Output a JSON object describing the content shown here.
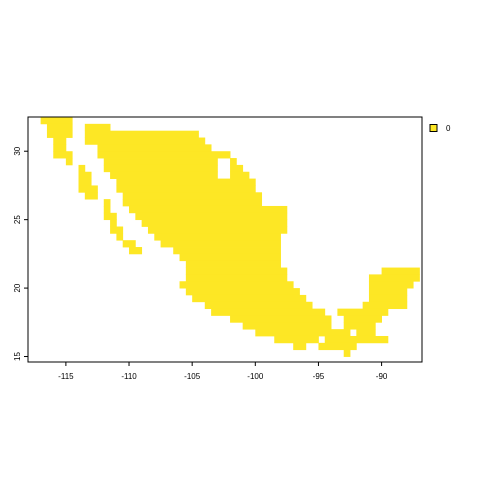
{
  "map": {
    "type": "raster",
    "fill_color": "#FDE725",
    "frame_color": "#000000",
    "extent": {
      "xmin": -118.0,
      "xmax": -86.8,
      "ymin": 14.6,
      "ymax": 32.5
    },
    "cell_size_degrees": 0.5,
    "x_ticks": [
      -115,
      -110,
      -105,
      -100,
      -95,
      -90
    ],
    "x_tick_labels": [
      "-115",
      "-110",
      "-105",
      "-100",
      "-95",
      "-90"
    ],
    "y_ticks": [
      15,
      20,
      25,
      30
    ],
    "y_tick_labels": [
      "15",
      "20",
      "25",
      "30"
    ],
    "rows": [
      {
        "lat": 32.25,
        "spans": [
          [
            -117.0,
            -114.5
          ]
        ]
      },
      {
        "lat": 31.75,
        "spans": [
          [
            -116.5,
            -114.5
          ],
          [
            -113.5,
            -111.5
          ]
        ]
      },
      {
        "lat": 31.25,
        "spans": [
          [
            -116.5,
            -114.5
          ],
          [
            -113.5,
            -104.5
          ]
        ]
      },
      {
        "lat": 30.75,
        "spans": [
          [
            -116.0,
            -115.0
          ],
          [
            -113.5,
            -104.0
          ]
        ]
      },
      {
        "lat": 30.25,
        "spans": [
          [
            -116.0,
            -115.0
          ],
          [
            -112.5,
            -103.5
          ]
        ]
      },
      {
        "lat": 29.75,
        "spans": [
          [
            -116.0,
            -114.5
          ],
          [
            -112.5,
            -102.0
          ]
        ]
      },
      {
        "lat": 29.25,
        "spans": [
          [
            -115.0,
            -114.5
          ],
          [
            -112.0,
            -103.0
          ],
          [
            -102.0,
            -101.5
          ]
        ]
      },
      {
        "lat": 28.75,
        "spans": [
          [
            -114.0,
            -113.5
          ],
          [
            -112.0,
            -103.0
          ],
          [
            -102.0,
            -101.0
          ]
        ]
      },
      {
        "lat": 28.25,
        "spans": [
          [
            -114.0,
            -113.0
          ],
          [
            -111.5,
            -103.0
          ],
          [
            -102.0,
            -100.5
          ]
        ]
      },
      {
        "lat": 27.75,
        "spans": [
          [
            -114.0,
            -113.0
          ],
          [
            -111.0,
            -100.0
          ]
        ]
      },
      {
        "lat": 27.25,
        "spans": [
          [
            -114.0,
            -112.5
          ],
          [
            -111.0,
            -100.0
          ]
        ]
      },
      {
        "lat": 26.75,
        "spans": [
          [
            -113.5,
            -112.5
          ],
          [
            -110.5,
            -99.5
          ]
        ]
      },
      {
        "lat": 26.25,
        "spans": [
          [
            -112.0,
            -111.5
          ],
          [
            -110.5,
            -99.5
          ]
        ]
      },
      {
        "lat": 25.75,
        "spans": [
          [
            -112.0,
            -111.5
          ],
          [
            -110.0,
            -97.5
          ]
        ]
      },
      {
        "lat": 25.25,
        "spans": [
          [
            -112.0,
            -111.0
          ],
          [
            -109.5,
            -97.5
          ]
        ]
      },
      {
        "lat": 24.75,
        "spans": [
          [
            -111.5,
            -111.0
          ],
          [
            -109.0,
            -97.5
          ]
        ]
      },
      {
        "lat": 24.25,
        "spans": [
          [
            -111.5,
            -110.5
          ],
          [
            -108.5,
            -97.5
          ]
        ]
      },
      {
        "lat": 23.75,
        "spans": [
          [
            -111.0,
            -110.5
          ],
          [
            -108.0,
            -98.0
          ]
        ]
      },
      {
        "lat": 23.25,
        "spans": [
          [
            -110.5,
            -109.5
          ],
          [
            -107.5,
            -98.0
          ]
        ]
      },
      {
        "lat": 22.75,
        "spans": [
          [
            -110.0,
            -109.0
          ],
          [
            -106.5,
            -98.0
          ]
        ]
      },
      {
        "lat": 22.25,
        "spans": [
          [
            -106.0,
            -98.0
          ]
        ]
      },
      {
        "lat": 21.75,
        "spans": [
          [
            -105.5,
            -98.0
          ]
        ]
      },
      {
        "lat": 21.25,
        "spans": [
          [
            -105.5,
            -97.5
          ],
          [
            -90.0,
            -87.0
          ]
        ]
      },
      {
        "lat": 20.75,
        "spans": [
          [
            -105.5,
            -97.5
          ],
          [
            -91.0,
            -87.0
          ]
        ]
      },
      {
        "lat": 20.25,
        "spans": [
          [
            -106.0,
            -97.0
          ],
          [
            -91.0,
            -87.5
          ]
        ]
      },
      {
        "lat": 19.75,
        "spans": [
          [
            -105.5,
            -96.5
          ],
          [
            -91.0,
            -88.0
          ]
        ]
      },
      {
        "lat": 19.25,
        "spans": [
          [
            -105.0,
            -96.0
          ],
          [
            -91.0,
            -88.0
          ]
        ]
      },
      {
        "lat": 18.75,
        "spans": [
          [
            -104.0,
            -95.5
          ],
          [
            -91.5,
            -88.0
          ]
        ]
      },
      {
        "lat": 18.25,
        "spans": [
          [
            -103.5,
            -94.5
          ],
          [
            -93.5,
            -89.5
          ]
        ]
      },
      {
        "lat": 17.75,
        "spans": [
          [
            -102.0,
            -94.0
          ],
          [
            -93.0,
            -90.0
          ]
        ]
      },
      {
        "lat": 17.25,
        "spans": [
          [
            -101.0,
            -94.0
          ],
          [
            -93.0,
            -90.5
          ]
        ]
      },
      {
        "lat": 16.75,
        "spans": [
          [
            -100.0,
            -92.5
          ],
          [
            -92.0,
            -90.5
          ]
        ]
      },
      {
        "lat": 16.25,
        "spans": [
          [
            -98.5,
            -95.0
          ],
          [
            -94.5,
            -89.5
          ]
        ]
      },
      {
        "lat": 15.75,
        "spans": [
          [
            -97.0,
            -96.0
          ],
          [
            -95.0,
            -92.0
          ]
        ]
      },
      {
        "lat": 15.25,
        "spans": [
          [
            -93.0,
            -92.5
          ]
        ]
      }
    ]
  },
  "legend": {
    "items": [
      {
        "label": "0",
        "color": "#FDE725"
      }
    ]
  }
}
